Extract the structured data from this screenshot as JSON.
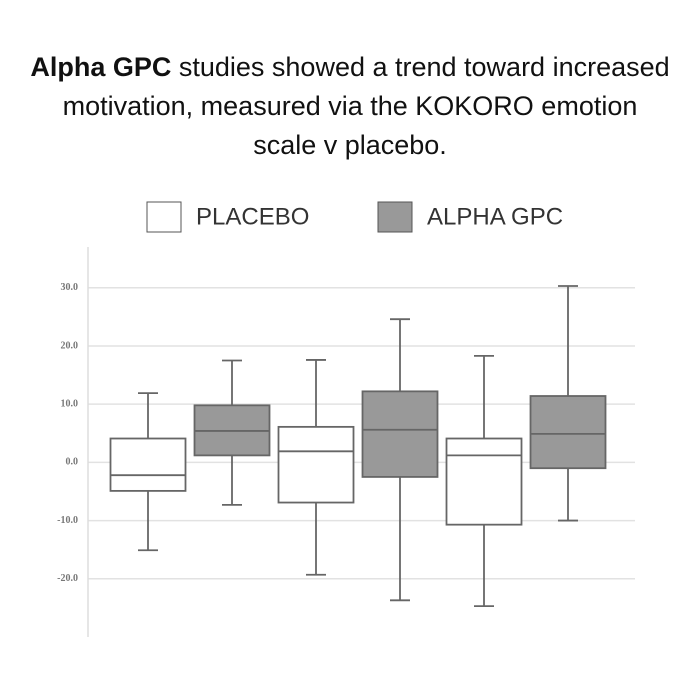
{
  "chart_data": {
    "type": "box",
    "title_bold": "Alpha GPC",
    "title": "studies showed a trend toward increased motivation, measured via the KOKORO emotion scale v placebo.",
    "categories": [
      null,
      null,
      null
    ],
    "ylim": [
      -30,
      37
    ],
    "yticks": [
      {
        "value": -20,
        "label": "-20.0"
      },
      {
        "value": -10,
        "label": "-10.0"
      },
      {
        "value": 0,
        "label": "0.0"
      },
      {
        "value": 10,
        "label": "10.0"
      },
      {
        "value": 20,
        "label": "20.0"
      },
      {
        "value": 30,
        "label": "30.0"
      }
    ],
    "grid": true,
    "series": [
      {
        "name": "PLACEBO",
        "color": "#ffffff",
        "min": [
          -15.1,
          -19.3,
          -24.7
        ],
        "q1": [
          -4.9,
          -6.9,
          -10.7
        ],
        "median": [
          -2.2,
          1.9,
          1.2
        ],
        "q3": [
          4.1,
          6.1,
          4.1
        ],
        "max": [
          11.9,
          17.6,
          18.3
        ]
      },
      {
        "name": "ALPHA GPC",
        "color": "#999999",
        "min": [
          -7.3,
          -23.7,
          -10.0
        ],
        "q1": [
          1.2,
          -2.5,
          -1.0
        ],
        "median": [
          5.4,
          5.6,
          4.9
        ],
        "q3": [
          9.8,
          12.2,
          11.4
        ],
        "max": [
          17.5,
          24.6,
          30.3
        ]
      }
    ]
  }
}
